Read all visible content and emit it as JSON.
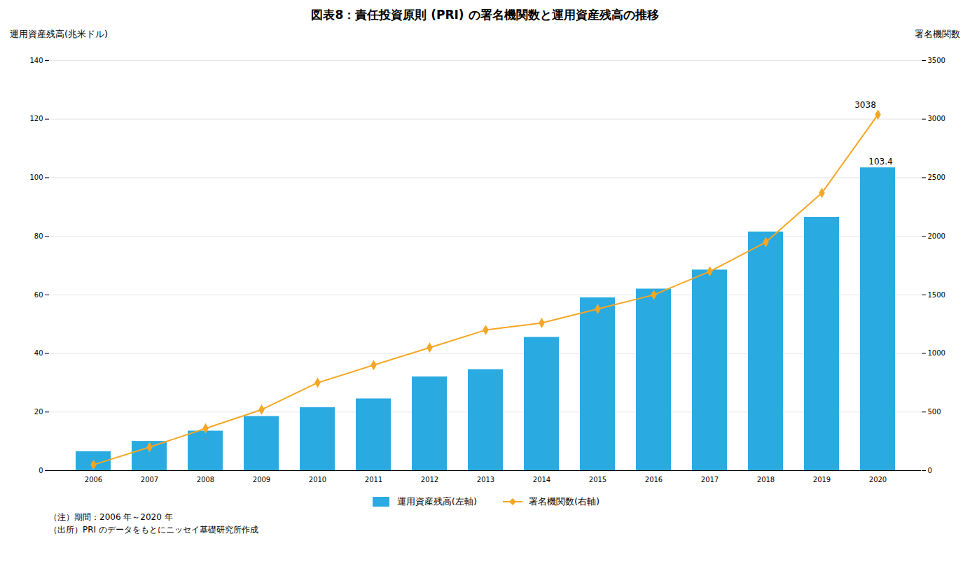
{
  "chart_data": {
    "type": "bar",
    "title": "図表8：責任投資原則 (PRI) の署名機関数と運用資産残高の推移",
    "ylabel": "運用資産残高(兆米ドル)",
    "y2label": "署名機関数",
    "categories": [
      "2006",
      "2007",
      "2008",
      "2009",
      "2010",
      "2011",
      "2012",
      "2013",
      "2014",
      "2015",
      "2016",
      "2017",
      "2018",
      "2019",
      "2020"
    ],
    "series": [
      {
        "name": "運用資産残高(左軸)",
        "type": "bar",
        "color": "#29ABE2",
        "axis": "y",
        "values": [
          6.5,
          10.0,
          13.5,
          18.5,
          21.5,
          24.5,
          32.0,
          34.5,
          45.5,
          59.0,
          62.0,
          68.5,
          81.5,
          86.5,
          103.4
        ]
      },
      {
        "name": "署名機関数(右軸)",
        "type": "line",
        "color": "#F5A623",
        "marker": "diamond",
        "axis": "y2",
        "values": [
          50,
          200,
          360,
          520,
          750,
          900,
          1050,
          1200,
          1260,
          1380,
          1500,
          1700,
          1950,
          2370,
          3038
        ]
      }
    ],
    "ylim": [
      0,
      140
    ],
    "yticks": [
      0,
      20,
      40,
      60,
      80,
      100,
      120,
      140
    ],
    "y2lim": [
      0,
      3500
    ],
    "y2ticks": [
      0,
      500,
      1000,
      1500,
      2000,
      2500,
      3000,
      3500
    ],
    "grid": true,
    "legend": "bottom",
    "annotations": [
      {
        "text": "103.4",
        "x": "2020",
        "y": 103.4,
        "axis": "y"
      },
      {
        "text": "3038",
        "x": "2020",
        "y": 3038,
        "axis": "y2"
      }
    ],
    "notes": [
      "（注）期間：2006 年～2020 年",
      "（出所）PRI のデータをもとにニッセイ基礎研究所作成"
    ]
  }
}
